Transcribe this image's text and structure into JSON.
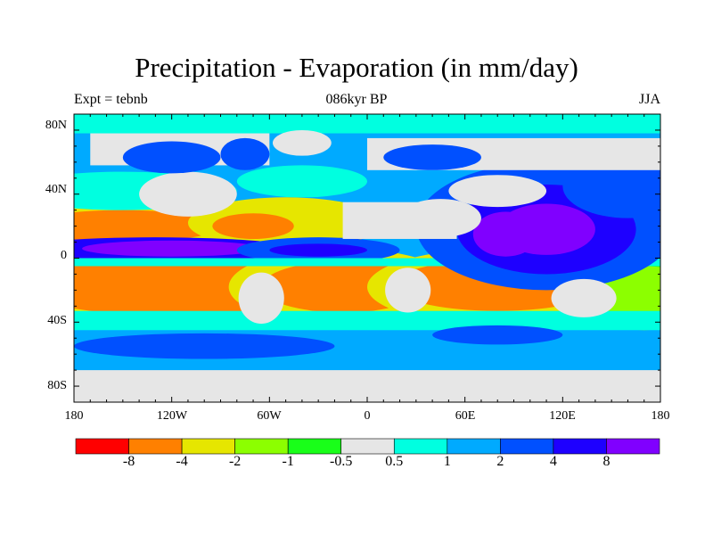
{
  "title": "Precipitation - Evaporation (in mm/day)",
  "subtitle_left": "Expt = tebnb",
  "subtitle_center": "086kyr BP",
  "subtitle_right": "JJA",
  "lat_labels": [
    "80N",
    "40N",
    "0",
    "40S",
    "80S"
  ],
  "lon_labels": [
    "180",
    "120W",
    "60W",
    "0",
    "60E",
    "120E",
    "180"
  ],
  "colorbar": {
    "labels": [
      "-8",
      "-4",
      "-2",
      "-1",
      "-0.5",
      "0.5",
      "1",
      "2",
      "4",
      "8"
    ],
    "colors": [
      "#ff0000",
      "#ff8000",
      "#e6e600",
      "#8cff00",
      "#19ff19",
      "#e6e6e6",
      "#00ffe0",
      "#00aaff",
      "#0050ff",
      "#1e00ff",
      "#8000ff"
    ]
  }
}
